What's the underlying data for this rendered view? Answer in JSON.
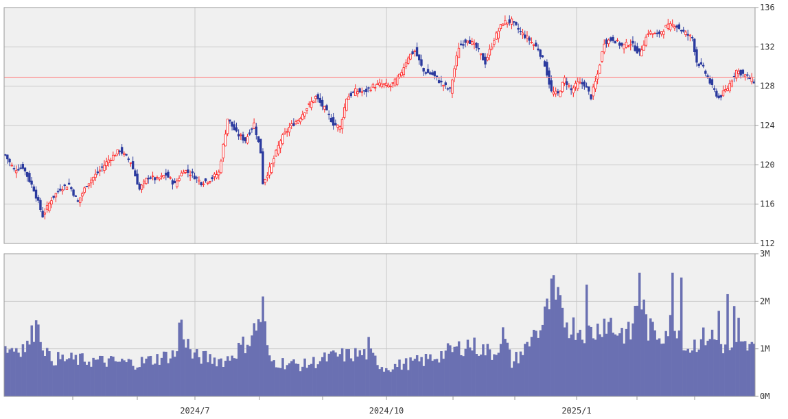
{
  "chart_data": [
    {
      "type": "candlestick",
      "title": "",
      "xlabel": "",
      "ylabel": "",
      "ylim": [
        112,
        136
      ],
      "y_ticks": [
        "112",
        "116",
        "120",
        "124",
        "128",
        "132",
        "136"
      ],
      "x_ticks": [
        "2024/7",
        "2024/10",
        "2025/1"
      ],
      "grid": true,
      "reference_line": 128.9,
      "colors": {
        "up": "#ff2020",
        "down": "#2b3a9e",
        "reference": "#ff8a8a",
        "plot_bg": "#f0f0f0",
        "grid": "#c8c8c8"
      },
      "close_anchors": [
        [
          0,
          121.0
        ],
        [
          4,
          119.5
        ],
        [
          8,
          119.8
        ],
        [
          13,
          117.5
        ],
        [
          17,
          114.8
        ],
        [
          21,
          116.5
        ],
        [
          25,
          117.6
        ],
        [
          29,
          118.0
        ],
        [
          33,
          116.2
        ],
        [
          37,
          118.0
        ],
        [
          42,
          119.2
        ],
        [
          47,
          120.5
        ],
        [
          52,
          121.5
        ],
        [
          57,
          120.3
        ],
        [
          61,
          117.5
        ],
        [
          65,
          118.8
        ],
        [
          69,
          118.5
        ],
        [
          73,
          119.0
        ],
        [
          77,
          118.0
        ],
        [
          81,
          119.5
        ],
        [
          85,
          119.0
        ],
        [
          89,
          118.2
        ],
        [
          93,
          118.5
        ],
        [
          97,
          119.2
        ],
        [
          101,
          124.7
        ],
        [
          105,
          123.2
        ],
        [
          109,
          122.5
        ],
        [
          113,
          124.2
        ],
        [
          116,
          121.3
        ],
        [
          117,
          118.2
        ],
        [
          121,
          120.0
        ],
        [
          125,
          122.5
        ],
        [
          129,
          123.8
        ],
        [
          133,
          124.6
        ],
        [
          137,
          125.8
        ],
        [
          141,
          126.9
        ],
        [
          145,
          125.7
        ],
        [
          149,
          124.2
        ],
        [
          152,
          123.8
        ],
        [
          155,
          126.8
        ],
        [
          159,
          127.5
        ],
        [
          163,
          127.4
        ],
        [
          167,
          128.0
        ],
        [
          171,
          128.2
        ],
        [
          175,
          128.0
        ],
        [
          179,
          129.0
        ],
        [
          183,
          131.0
        ],
        [
          186,
          131.6
        ],
        [
          190,
          129.5
        ],
        [
          194,
          129.2
        ],
        [
          198,
          128.3
        ],
        [
          202,
          127.6
        ],
        [
          206,
          132.0
        ],
        [
          210,
          132.8
        ],
        [
          214,
          131.9
        ],
        [
          218,
          130.4
        ],
        [
          222,
          132.8
        ],
        [
          226,
          134.5
        ],
        [
          230,
          134.6
        ],
        [
          234,
          133.5
        ],
        [
          238,
          132.7
        ],
        [
          242,
          131.8
        ],
        [
          245,
          130.2
        ],
        [
          248,
          127.4
        ],
        [
          251,
          127.2
        ],
        [
          254,
          128.7
        ],
        [
          257,
          127.6
        ],
        [
          260,
          128.3
        ],
        [
          263,
          128.2
        ],
        [
          266,
          126.9
        ],
        [
          269,
          129.2
        ],
        [
          272,
          132.5
        ],
        [
          276,
          132.8
        ],
        [
          280,
          132.1
        ],
        [
          284,
          132.4
        ],
        [
          288,
          131.3
        ],
        [
          292,
          133.5
        ],
        [
          296,
          133.2
        ],
        [
          300,
          134.0
        ],
        [
          304,
          134.3
        ],
        [
          308,
          133.5
        ],
        [
          312,
          132.9
        ],
        [
          314,
          130.5
        ],
        [
          317,
          129.8
        ],
        [
          321,
          127.9
        ],
        [
          324,
          126.8
        ],
        [
          328,
          127.8
        ],
        [
          332,
          129.6
        ],
        [
          336,
          129.1
        ],
        [
          340,
          128.5
        ]
      ],
      "volume_scale": "M",
      "volume_ylim": [
        0,
        3
      ],
      "volume_ticks": [
        "0M",
        "1M",
        "2M",
        "3M"
      ],
      "volume_color": "#6a70b2",
      "volume_anchors": [
        [
          0,
          1.0
        ],
        [
          10,
          1.05
        ],
        [
          14,
          1.5
        ],
        [
          20,
          0.8
        ],
        [
          40,
          0.75
        ],
        [
          60,
          0.7
        ],
        [
          78,
          0.9
        ],
        [
          80,
          1.45
        ],
        [
          85,
          0.85
        ],
        [
          100,
          0.75
        ],
        [
          111,
          1.2
        ],
        [
          117,
          1.75
        ],
        [
          120,
          0.75
        ],
        [
          135,
          0.65
        ],
        [
          150,
          0.85
        ],
        [
          165,
          0.9
        ],
        [
          172,
          0.6
        ],
        [
          190,
          0.75
        ],
        [
          205,
          1.0
        ],
        [
          210,
          1.1
        ],
        [
          222,
          0.9
        ],
        [
          226,
          1.3
        ],
        [
          230,
          0.7
        ],
        [
          238,
          1.1
        ],
        [
          244,
          1.5
        ],
        [
          248,
          2.1
        ],
        [
          252,
          1.8
        ],
        [
          256,
          1.5
        ],
        [
          262,
          1.4
        ],
        [
          268,
          1.35
        ],
        [
          272,
          1.6
        ],
        [
          276,
          1.4
        ],
        [
          284,
          1.3
        ],
        [
          288,
          2.2
        ],
        [
          292,
          1.4
        ],
        [
          298,
          1.3
        ],
        [
          304,
          1.6
        ],
        [
          310,
          1.0
        ],
        [
          316,
          1.2
        ],
        [
          320,
          1.3
        ],
        [
          324,
          1.1
        ],
        [
          330,
          1.0
        ],
        [
          336,
          1.05
        ],
        [
          340,
          1.0
        ]
      ],
      "volume_spikes": [
        [
          14,
          1.6
        ],
        [
          79,
          1.55
        ],
        [
          117,
          2.1
        ],
        [
          165,
          1.25
        ],
        [
          240,
          1.4
        ],
        [
          249,
          2.55
        ],
        [
          251,
          2.3
        ],
        [
          264,
          2.35
        ],
        [
          275,
          1.65
        ],
        [
          288,
          2.6
        ],
        [
          303,
          2.6
        ],
        [
          307,
          2.5
        ],
        [
          328,
          2.15
        ],
        [
          331,
          1.9
        ],
        [
          333,
          1.65
        ],
        [
          324,
          1.8
        ],
        [
          338,
          1.1
        ]
      ]
    }
  ]
}
